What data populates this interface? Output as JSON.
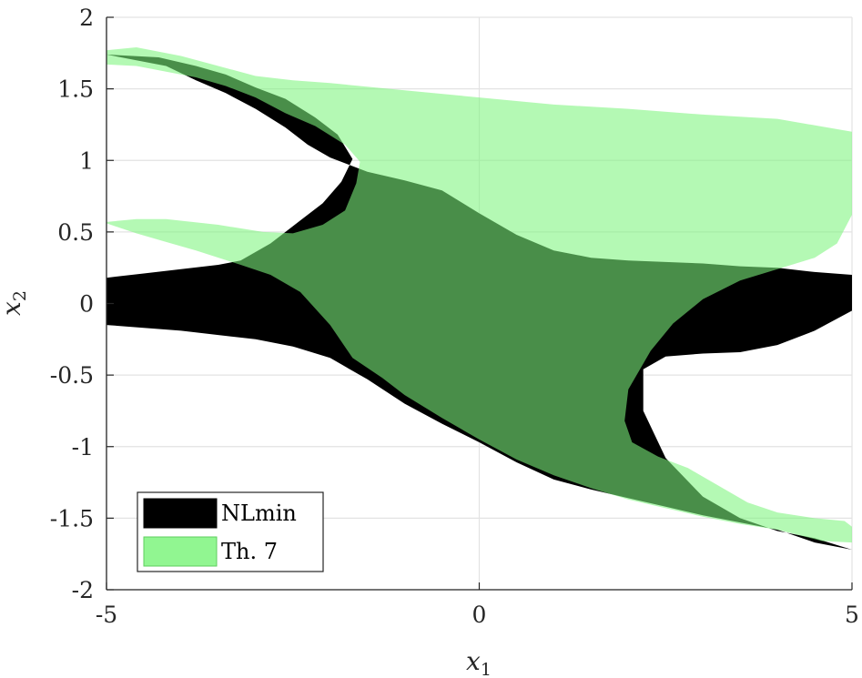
{
  "chart_data": {
    "type": "area",
    "xlabel": "x",
    "xlabel_sub": "1",
    "ylabel": "x",
    "ylabel_sub": "2",
    "xlim": [
      -5,
      5
    ],
    "ylim": [
      -2,
      2
    ],
    "xticks": [
      -5,
      0,
      5
    ],
    "yticks": [
      -2,
      -1.5,
      -1,
      -0.5,
      0,
      0.5,
      1,
      1.5,
      2
    ],
    "grid": true,
    "legend_position": "bottom-left",
    "series": [
      {
        "name": "NLmin",
        "color": "#000000",
        "opacity": 1.0,
        "polygon": [
          [
            -5.0,
            1.74
          ],
          [
            -4.6,
            1.7
          ],
          [
            -4.2,
            1.66
          ],
          [
            -3.8,
            1.56
          ],
          [
            -3.4,
            1.47
          ],
          [
            -3.0,
            1.36
          ],
          [
            -2.6,
            1.23
          ],
          [
            -2.3,
            1.11
          ],
          [
            -2.0,
            1.02
          ],
          [
            -1.5,
            0.92
          ],
          [
            -1.0,
            0.86
          ],
          [
            -0.5,
            0.79
          ],
          [
            0.0,
            0.63
          ],
          [
            0.5,
            0.48
          ],
          [
            1.0,
            0.37
          ],
          [
            1.5,
            0.32
          ],
          [
            2.0,
            0.3
          ],
          [
            2.5,
            0.29
          ],
          [
            3.0,
            0.28
          ],
          [
            3.5,
            0.26
          ],
          [
            4.0,
            0.25
          ],
          [
            4.5,
            0.22
          ],
          [
            5.0,
            0.2
          ],
          [
            5.0,
            -0.05
          ],
          [
            4.5,
            -0.19
          ],
          [
            4.0,
            -0.29
          ],
          [
            3.5,
            -0.34
          ],
          [
            3.0,
            -0.35
          ],
          [
            2.5,
            -0.37
          ],
          [
            2.2,
            -0.46
          ],
          [
            2.2,
            -0.75
          ],
          [
            2.5,
            -1.08
          ],
          [
            3.0,
            -1.35
          ],
          [
            3.5,
            -1.5
          ],
          [
            4.0,
            -1.59
          ],
          [
            4.5,
            -1.64
          ],
          [
            5.0,
            -1.72
          ],
          [
            4.5,
            -1.67
          ],
          [
            4.0,
            -1.58
          ],
          [
            3.5,
            -1.53
          ],
          [
            3.0,
            -1.48
          ],
          [
            2.5,
            -1.42
          ],
          [
            2.0,
            -1.36
          ],
          [
            1.5,
            -1.3
          ],
          [
            1.0,
            -1.23
          ],
          [
            0.5,
            -1.11
          ],
          [
            0.0,
            -0.97
          ],
          [
            -0.5,
            -0.84
          ],
          [
            -1.0,
            -0.7
          ],
          [
            -1.5,
            -0.53
          ],
          [
            -2.0,
            -0.38
          ],
          [
            -2.5,
            -0.3
          ],
          [
            -3.0,
            -0.25
          ],
          [
            -3.5,
            -0.22
          ],
          [
            -4.0,
            -0.19
          ],
          [
            -4.5,
            -0.17
          ],
          [
            -5.0,
            -0.15
          ],
          [
            -5.0,
            0.18
          ],
          [
            -4.5,
            0.21
          ],
          [
            -4.0,
            0.24
          ],
          [
            -3.5,
            0.27
          ],
          [
            -3.2,
            0.3
          ],
          [
            -2.8,
            0.42
          ],
          [
            -2.4,
            0.58
          ],
          [
            -2.1,
            0.7
          ],
          [
            -1.85,
            0.85
          ],
          [
            -1.7,
            1.01
          ],
          [
            -1.9,
            1.18
          ],
          [
            -2.2,
            1.3
          ],
          [
            -2.6,
            1.43
          ],
          [
            -3.0,
            1.51
          ],
          [
            -3.4,
            1.6
          ],
          [
            -3.8,
            1.66
          ],
          [
            -4.3,
            1.72
          ]
        ]
      },
      {
        "name": "Th. 7",
        "color": "#7ef47e",
        "opacity": 0.58,
        "polygon": [
          [
            -5.0,
            1.77
          ],
          [
            -4.6,
            1.79
          ],
          [
            -4.0,
            1.73
          ],
          [
            -3.5,
            1.66
          ],
          [
            -3.0,
            1.59
          ],
          [
            -2.5,
            1.56
          ],
          [
            -2.0,
            1.54
          ],
          [
            -1.0,
            1.49
          ],
          [
            0.0,
            1.44
          ],
          [
            1.0,
            1.39
          ],
          [
            2.0,
            1.36
          ],
          [
            3.0,
            1.32
          ],
          [
            4.0,
            1.29
          ],
          [
            5.0,
            1.2
          ],
          [
            5.0,
            0.62
          ],
          [
            4.8,
            0.42
          ],
          [
            4.5,
            0.32
          ],
          [
            4.0,
            0.24
          ],
          [
            3.5,
            0.16
          ],
          [
            3.0,
            0.03
          ],
          [
            2.6,
            -0.14
          ],
          [
            2.3,
            -0.33
          ],
          [
            2.0,
            -0.6
          ],
          [
            1.95,
            -0.82
          ],
          [
            2.05,
            -0.97
          ],
          [
            2.4,
            -1.07
          ],
          [
            2.8,
            -1.15
          ],
          [
            3.2,
            -1.27
          ],
          [
            3.6,
            -1.39
          ],
          [
            4.0,
            -1.46
          ],
          [
            4.5,
            -1.5
          ],
          [
            4.9,
            -1.52
          ],
          [
            5.0,
            -1.56
          ],
          [
            5.0,
            -1.67
          ],
          [
            4.6,
            -1.66
          ],
          [
            4.0,
            -1.58
          ],
          [
            3.5,
            -1.54
          ],
          [
            3.0,
            -1.49
          ],
          [
            2.5,
            -1.43
          ],
          [
            2.0,
            -1.37
          ],
          [
            1.5,
            -1.29
          ],
          [
            1.0,
            -1.2
          ],
          [
            0.5,
            -1.09
          ],
          [
            0.0,
            -0.95
          ],
          [
            -0.5,
            -0.8
          ],
          [
            -1.0,
            -0.64
          ],
          [
            -1.3,
            -0.52
          ],
          [
            -1.7,
            -0.38
          ],
          [
            -2.0,
            -0.15
          ],
          [
            -2.4,
            0.08
          ],
          [
            -2.8,
            0.2
          ],
          [
            -3.2,
            0.27
          ],
          [
            -3.8,
            0.37
          ],
          [
            -4.2,
            0.43
          ],
          [
            -4.6,
            0.49
          ],
          [
            -5.0,
            0.56
          ],
          [
            -5.0,
            0.57
          ],
          [
            -4.6,
            0.59
          ],
          [
            -4.2,
            0.59
          ],
          [
            -3.5,
            0.55
          ],
          [
            -2.9,
            0.5
          ],
          [
            -2.5,
            0.49
          ],
          [
            -2.1,
            0.55
          ],
          [
            -1.8,
            0.65
          ],
          [
            -1.65,
            0.84
          ],
          [
            -1.6,
            0.99
          ],
          [
            -1.8,
            1.11
          ],
          [
            -2.2,
            1.24
          ],
          [
            -2.6,
            1.33
          ],
          [
            -3.0,
            1.44
          ],
          [
            -3.4,
            1.52
          ],
          [
            -3.8,
            1.58
          ],
          [
            -4.2,
            1.62
          ],
          [
            -4.6,
            1.66
          ],
          [
            -5.0,
            1.67
          ]
        ]
      }
    ]
  }
}
